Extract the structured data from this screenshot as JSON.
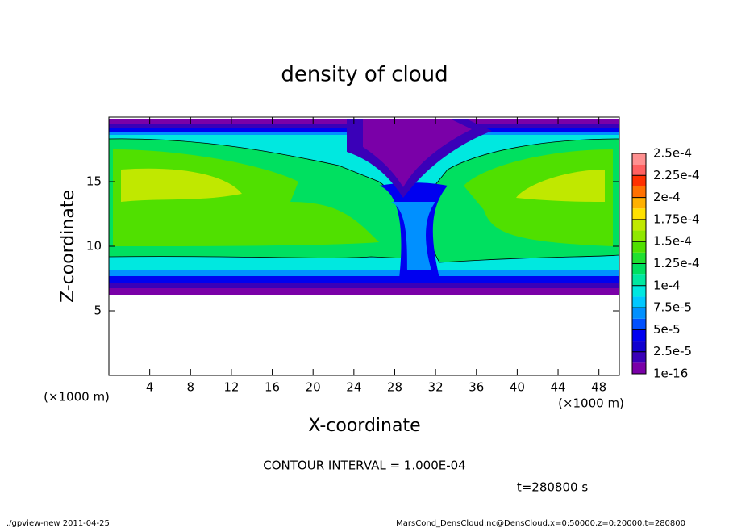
{
  "chart_data": {
    "type": "contour",
    "title": "density of cloud",
    "x_label": "X-coordinate",
    "y_label": "Z-coordinate",
    "x_unit": "(×1000 m)",
    "y_unit": "(×1000 m)",
    "xlim": [
      0,
      50
    ],
    "ylim": [
      0,
      20
    ],
    "xticks": [
      4,
      8,
      12,
      16,
      20,
      24,
      28,
      32,
      36,
      40,
      44,
      48
    ],
    "yticks": [
      5,
      10,
      15
    ],
    "levels": [
      {
        "value": 1e-16,
        "label": "1e-16"
      },
      {
        "value": 2.5e-05,
        "label": "2.5e-5"
      },
      {
        "value": 5e-05,
        "label": "5e-5"
      },
      {
        "value": 7.5e-05,
        "label": "7.5e-5"
      },
      {
        "value": 0.0001,
        "label": "1e-4"
      },
      {
        "value": 0.000125,
        "label": "1.25e-4"
      },
      {
        "value": 0.00015,
        "label": "1.5e-4"
      },
      {
        "value": 0.000175,
        "label": "1.75e-4"
      },
      {
        "value": 0.0002,
        "label": "2e-4"
      },
      {
        "value": 0.000225,
        "label": "2.25e-4"
      },
      {
        "value": 0.00025,
        "label": "2.5e-4"
      }
    ],
    "colors": [
      "#7a00a8",
      "#3a00b8",
      "#1000d0",
      "#0000f0",
      "#0050ff",
      "#0090ff",
      "#00c8ff",
      "#00e8e0",
      "#00e8a0",
      "#00e060",
      "#20e030",
      "#50e000",
      "#90e800",
      "#c0e800",
      "#ffe000",
      "#ffb000",
      "#ff7000",
      "#ff3000",
      "#ff6060",
      "#ff9090"
    ],
    "contour_interval": "CONTOUR INTERVAL = 1.000E-04",
    "time_label": "t=280800 s"
  },
  "footer": {
    "left": "./gpview-new   2011-04-25",
    "right": "MarsCond_DensCloud.nc@DensCloud,x=0:50000,z=0:20000,t=280800"
  }
}
